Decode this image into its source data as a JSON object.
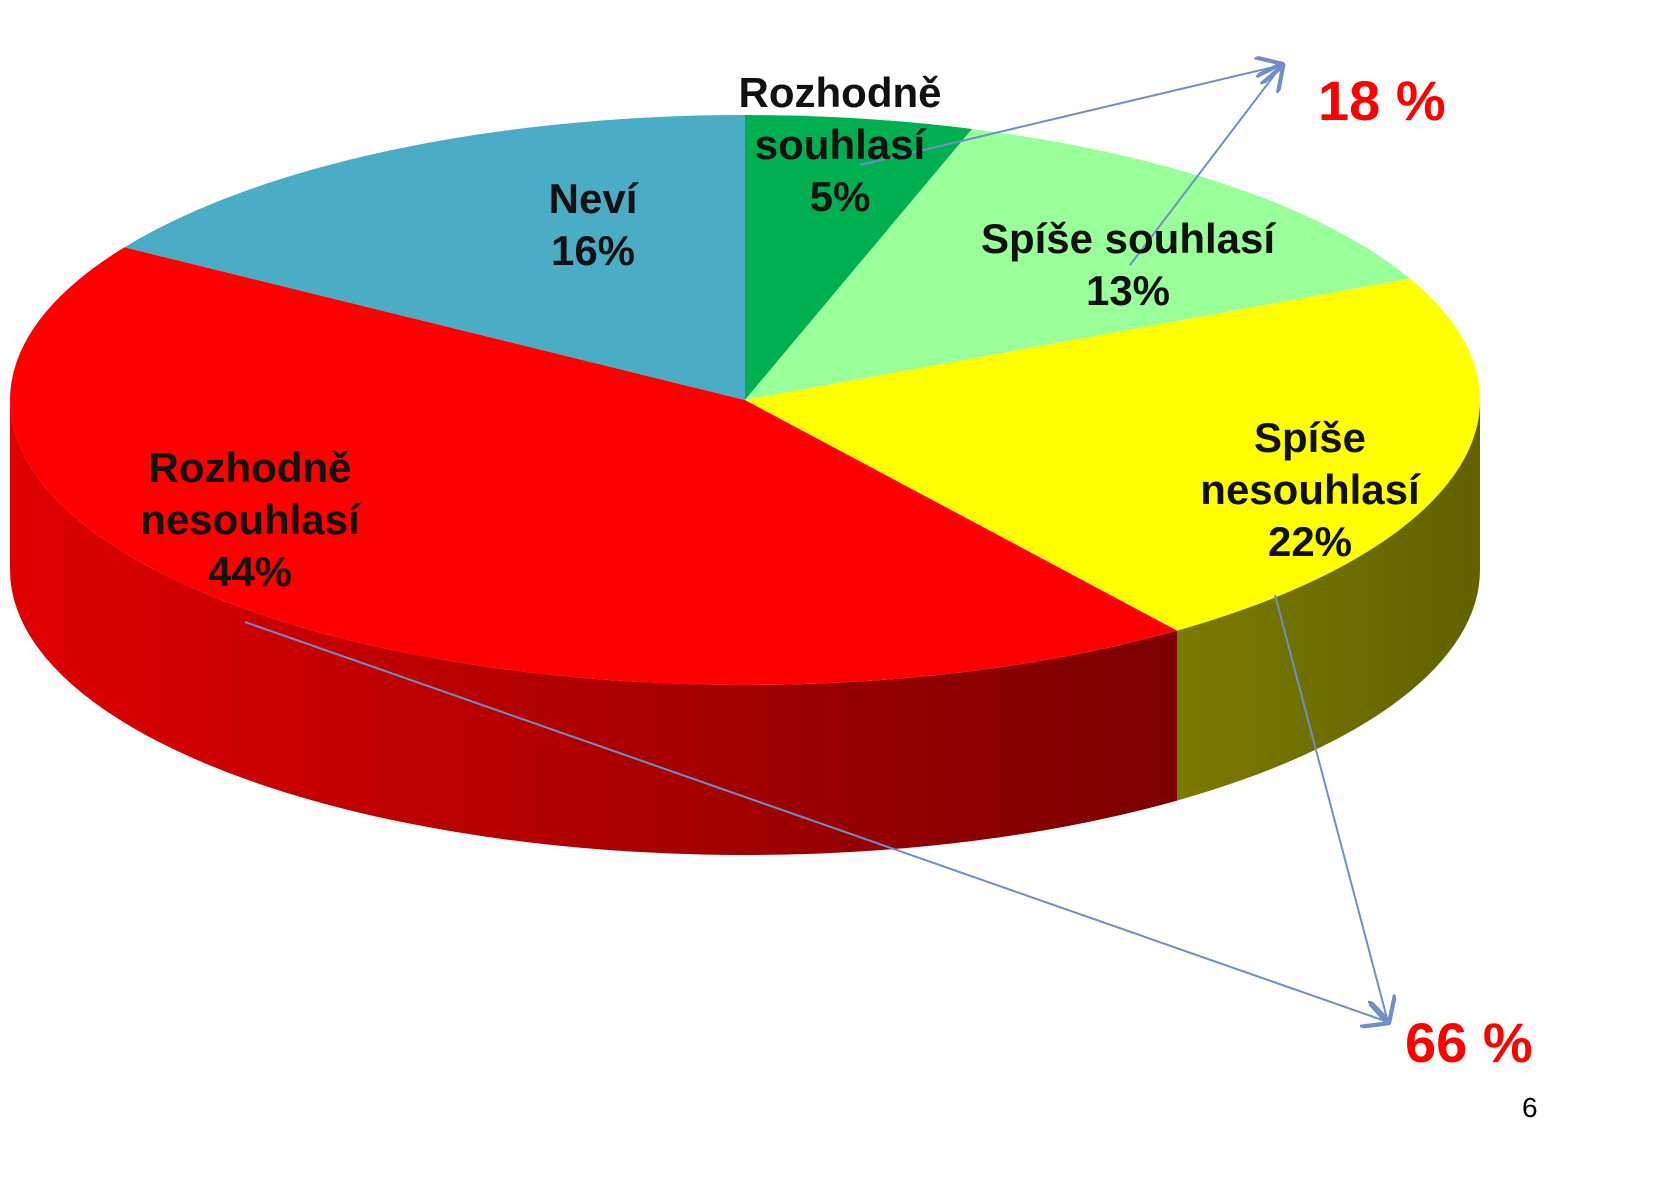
{
  "chart_data": {
    "type": "pie3d",
    "categories": [
      "Rozhodně souhlasí",
      "Spíše souhlasí",
      "Spíše nesouhlasí",
      "Rozhodně nesouhlasí",
      "Neví"
    ],
    "values": [
      5,
      13,
      22,
      44,
      16
    ],
    "value_labels": [
      "5%",
      "13%",
      "22%",
      "44%",
      "16%"
    ],
    "colors": [
      "#00b050",
      "#99ff99",
      "#ffff00",
      "#ff0000",
      "#4bacc6"
    ],
    "annotations": [
      "18 %",
      "66 %"
    ],
    "page_number": "6"
  }
}
